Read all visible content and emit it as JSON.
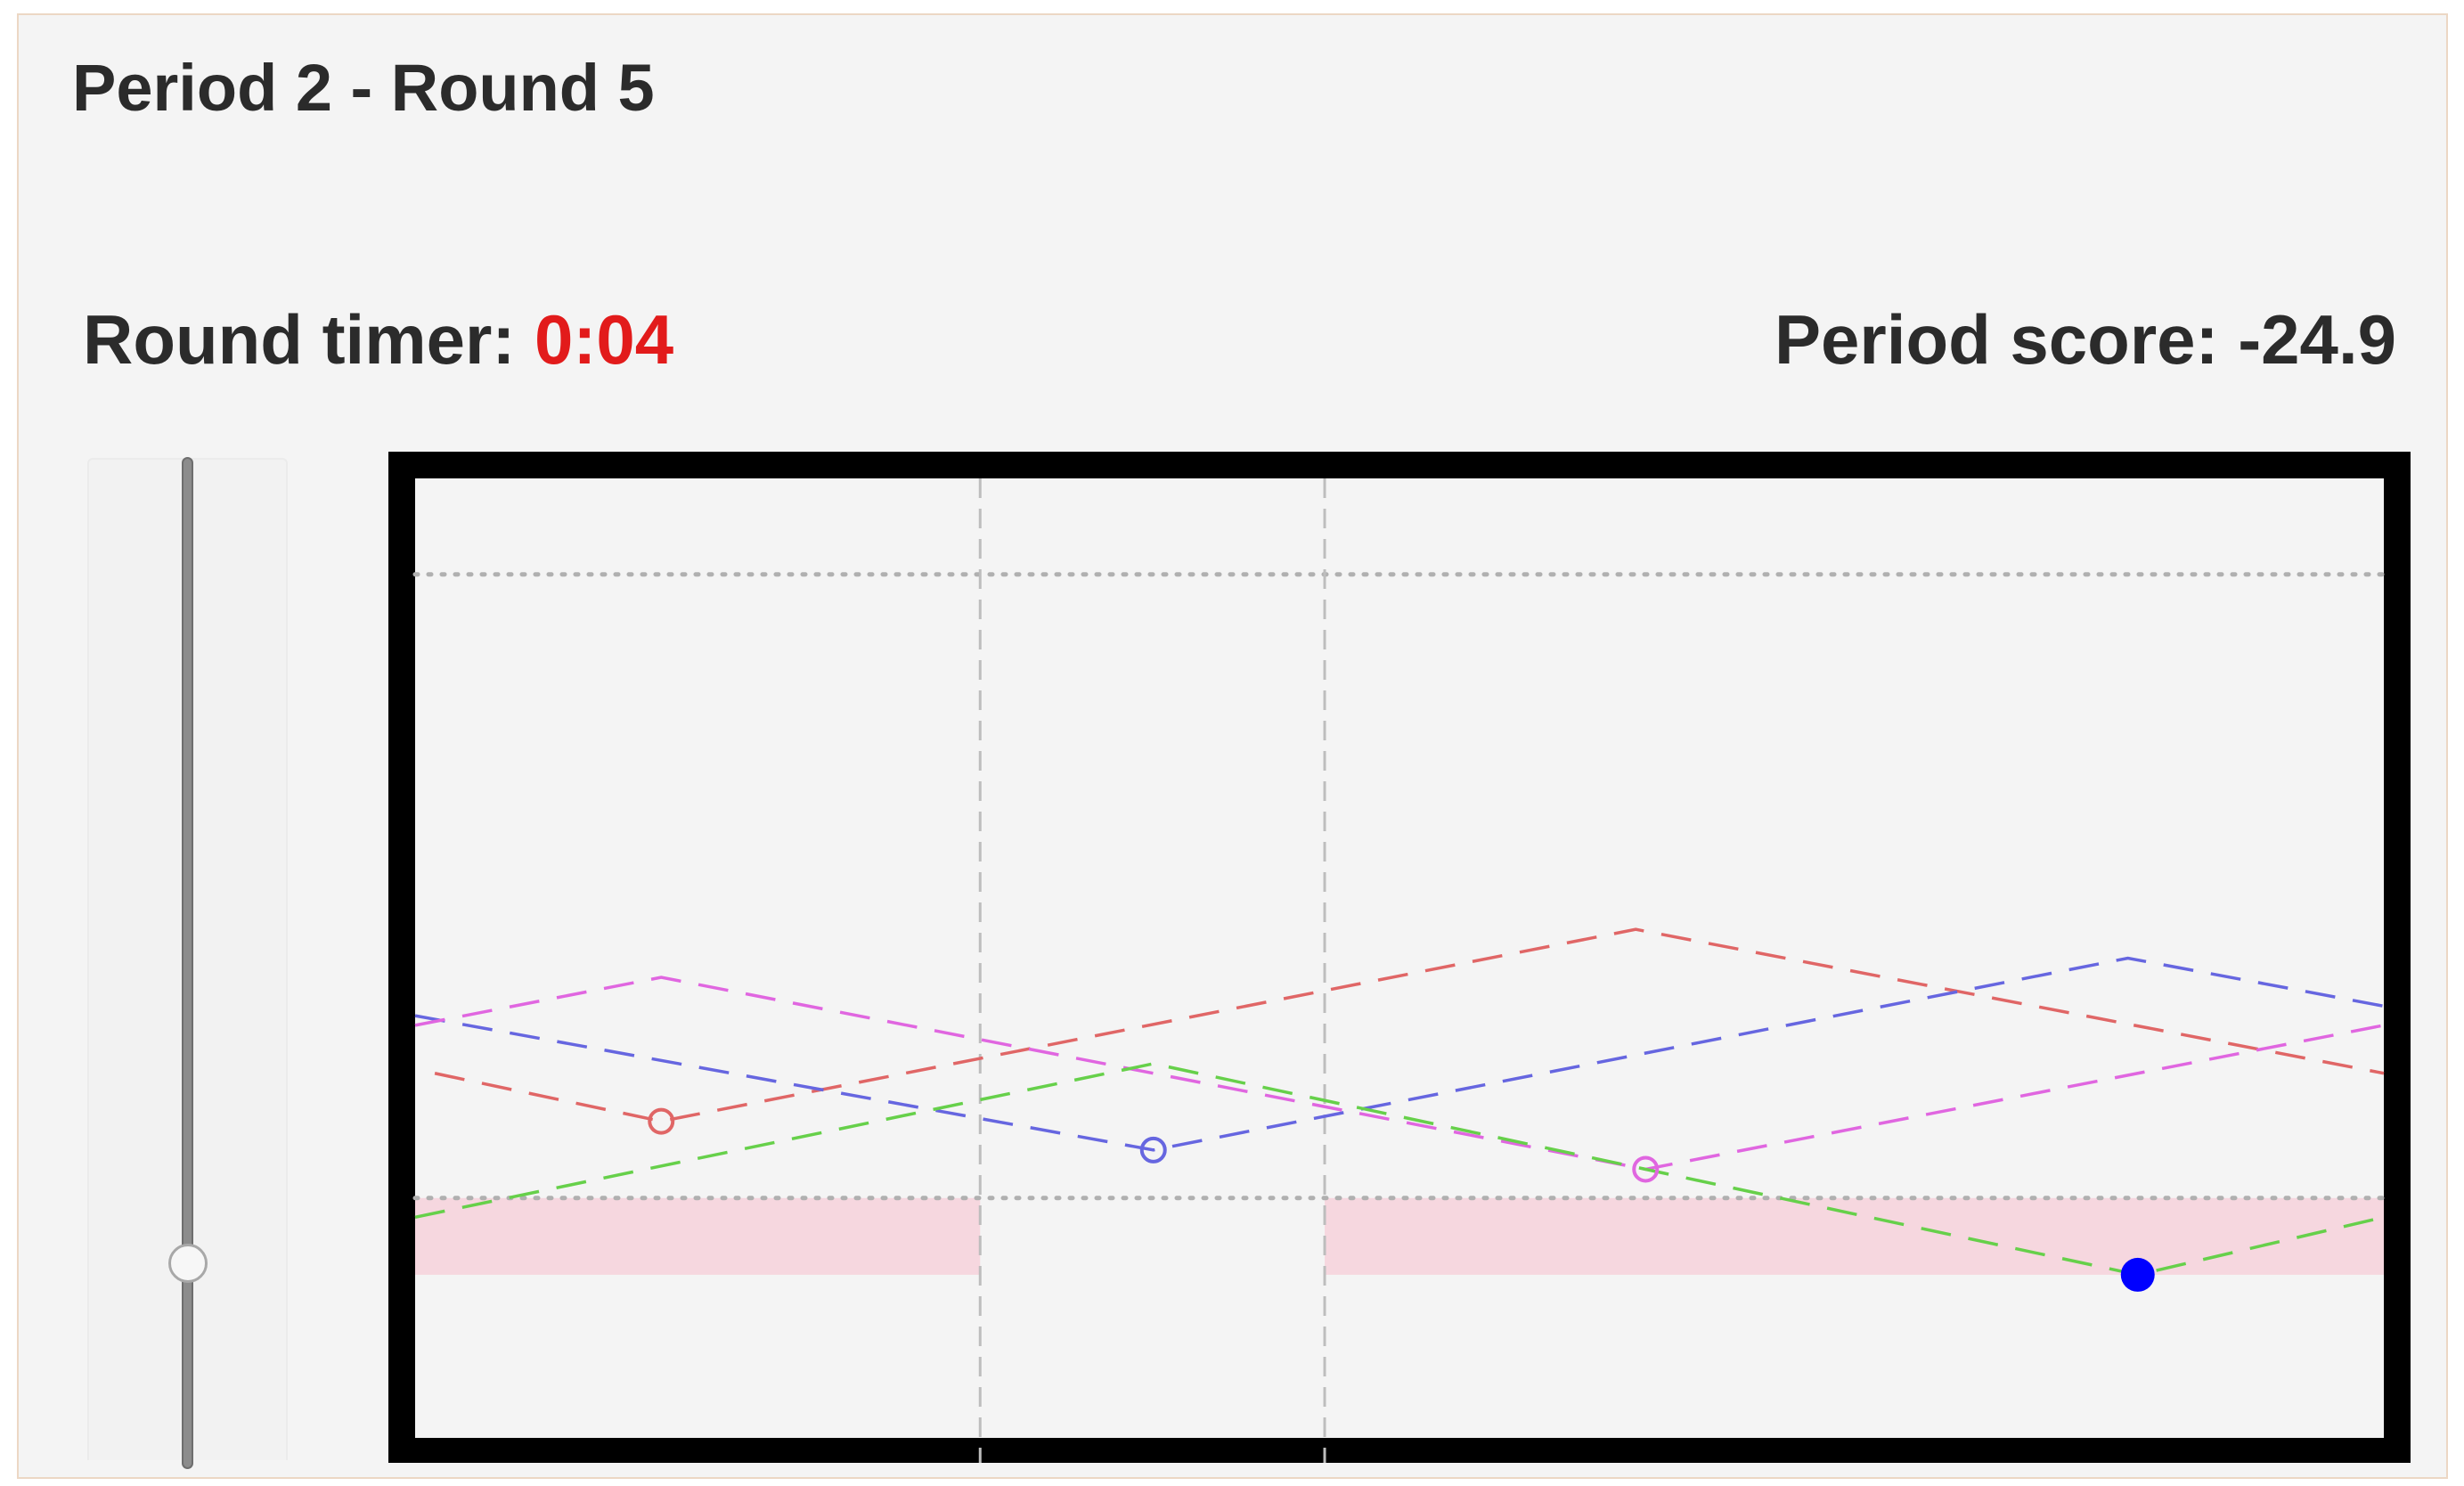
{
  "header": {
    "title": "Period 2 - Round 5"
  },
  "status": {
    "timer_label": "Round timer: ",
    "timer_value": "0:04",
    "score_label": "Period score: ",
    "score_value": "-24.9"
  },
  "colors": {
    "panel_bg": "#f4f4f4",
    "timer_value": "#e21b1b",
    "band": "#f6d7df",
    "series_red": "#e06666",
    "series_blue": "#6666e0",
    "series_magenta": "#e066e0",
    "series_green": "#66d04a",
    "player_marker": "#0000ff"
  },
  "slider": {
    "level": 0.19
  },
  "chart_data": {
    "type": "line",
    "xlim": [
      0,
      1
    ],
    "ylim": [
      0,
      1
    ],
    "grid": false,
    "title": "",
    "xlabel": "",
    "ylabel": "",
    "reference_lines": {
      "y": [
        0.9,
        0.25
      ],
      "x": [
        0.287,
        0.462
      ]
    },
    "shaded_bands": [
      {
        "x": [
          0,
          0.287
        ],
        "y": [
          0.17,
          0.25
        ]
      },
      {
        "x": [
          0.462,
          1
        ],
        "y": [
          0.17,
          0.25
        ]
      }
    ],
    "series": [
      {
        "color": "red",
        "marker": "open-circle",
        "x": [
          0.01,
          0.125,
          0.62,
          1.0
        ],
        "y": [
          0.38,
          0.33,
          0.53,
          0.38
        ],
        "marker_at": [
          0.125,
          0.33
        ]
      },
      {
        "color": "blue",
        "marker": "open-circle",
        "x": [
          0.0,
          0.375,
          0.87,
          1.0
        ],
        "y": [
          0.44,
          0.3,
          0.5,
          0.45
        ],
        "marker_at": [
          0.375,
          0.3
        ]
      },
      {
        "color": "magenta",
        "marker": "open-circle",
        "x": [
          0.0,
          0.125,
          0.625,
          1.0
        ],
        "y": [
          0.43,
          0.48,
          0.28,
          0.43
        ],
        "marker_at": [
          0.625,
          0.28
        ]
      },
      {
        "color": "green",
        "marker": "filled-circle",
        "x": [
          0.0,
          0.375,
          0.875,
          1.0
        ],
        "y": [
          0.23,
          0.39,
          0.17,
          0.23
        ],
        "marker_at": [
          0.875,
          0.17
        ]
      }
    ]
  }
}
